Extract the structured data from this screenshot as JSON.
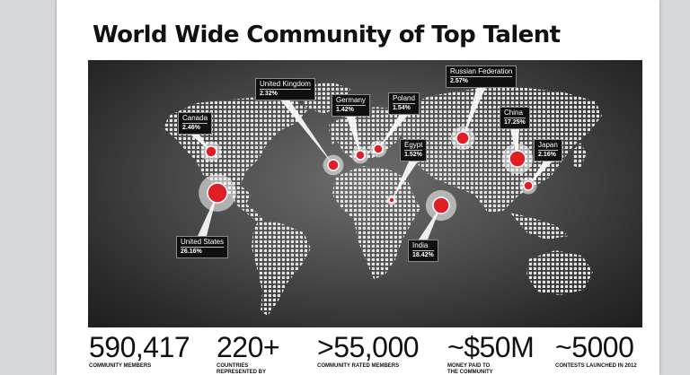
{
  "slide": {
    "title": "World Wide Community of Top Talent"
  },
  "map": {
    "colors": {
      "dot": "#e8e8e8",
      "marker": "#e01e26",
      "halo": "#ffffff",
      "callout_bg": "#101010"
    },
    "callouts": [
      {
        "country": "Canada",
        "percent": "2.46%"
      },
      {
        "country": "United Kingdom",
        "percent": "2.32%"
      },
      {
        "country": "Germany",
        "percent": "1.42%"
      },
      {
        "country": "Poland",
        "percent": "1.54%"
      },
      {
        "country": "Russian Federation",
        "percent": "2.57%"
      },
      {
        "country": "Egypt",
        "percent": "1.52%"
      },
      {
        "country": "China",
        "percent": "17.25%"
      },
      {
        "country": "Japan",
        "percent": "2.16%"
      },
      {
        "country": "United States",
        "percent": "26.16%"
      },
      {
        "country": "India",
        "percent": "18.42%"
      }
    ]
  },
  "stats": [
    {
      "value": "590,417",
      "label": "COMMUNITY MEMBERS"
    },
    {
      "value": "220+",
      "label": "COUNTRIES REPRESENTED BY"
    },
    {
      "value": ">55,000",
      "label": "COMMUNITY RATED MEMBERS"
    },
    {
      "value": "~$50M",
      "label": "MONEY PAID TO THE COMMUNITY"
    },
    {
      "value": "~5000",
      "label": "CONTESTS  LAUNCHED IN 2012"
    }
  ]
}
